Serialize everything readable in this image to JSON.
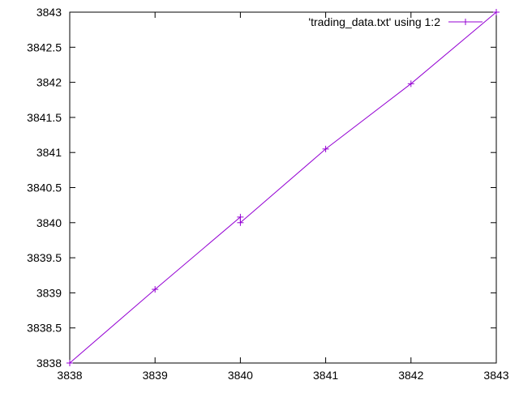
{
  "chart_data": {
    "type": "line",
    "title": "",
    "xlabel": "",
    "ylabel": "",
    "xlim": [
      3838,
      3843
    ],
    "ylim": [
      3838,
      3843
    ],
    "x_ticks": [
      3838,
      3839,
      3840,
      3841,
      3842,
      3843
    ],
    "x_tick_labels": [
      "3838",
      "3839",
      "3840",
      "3841",
      "3842",
      "3843"
    ],
    "y_ticks": [
      3838,
      3838.5,
      3839,
      3839.5,
      3840,
      3840.5,
      3841,
      3841.5,
      3842,
      3842.5,
      3843
    ],
    "y_tick_labels": [
      "3838",
      "3838.5",
      "3839",
      "3839.5",
      "3840",
      "3840.5",
      "3841",
      "3841.5",
      "3842",
      "3842.5",
      "3843"
    ],
    "grid": false,
    "legend_position": "top-right",
    "series": [
      {
        "name": "'trading_data.txt' using 1:2",
        "color": "#9400d3",
        "marker": "plus",
        "x": [
          3838,
          3839,
          3840,
          3840,
          3841,
          3842,
          3843
        ],
        "y": [
          3838.0,
          3839.05,
          3840.08,
          3840.0,
          3841.05,
          3841.98,
          3843.0
        ]
      }
    ]
  }
}
